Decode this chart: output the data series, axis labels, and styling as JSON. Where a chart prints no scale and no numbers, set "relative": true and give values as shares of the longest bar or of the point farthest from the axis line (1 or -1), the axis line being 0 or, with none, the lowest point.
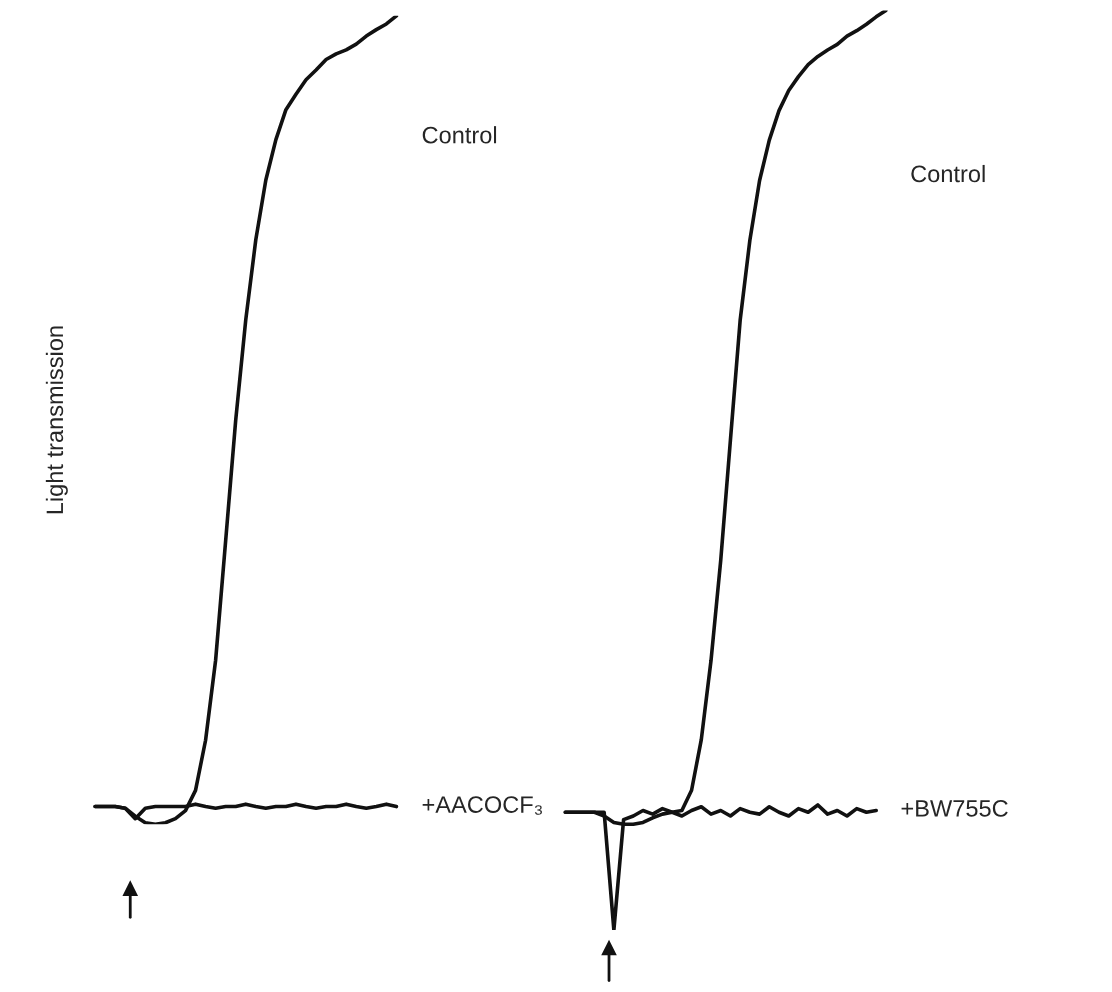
{
  "chart_data": [
    {
      "type": "line",
      "relative": true,
      "ylabel": "Light transmission",
      "categories": [
        null,
        null,
        null,
        null,
        null,
        null,
        null,
        null,
        null,
        null,
        null,
        null,
        null,
        null,
        null,
        null,
        null,
        null,
        null,
        null,
        null,
        null,
        null,
        null,
        null,
        null,
        null,
        null,
        null,
        null,
        null
      ],
      "series": [
        {
          "name": "Control",
          "color": "#111111",
          "values": [
            0.022,
            0.022,
            0.022,
            0.02,
            0.01,
            0.002,
            0,
            0.002,
            0.007,
            0.017,
            0.042,
            0.104,
            0.203,
            0.351,
            0.5,
            0.624,
            0.723,
            0.797,
            0.847,
            0.884,
            0.903,
            0.921,
            0.933,
            0.946,
            0.953,
            0.958,
            0.965,
            0.975,
            0.983,
            0.99,
            1
          ]
        },
        {
          "name": "+AACOCF₃",
          "color": "#111111",
          "values": [
            0.022,
            0.022,
            0.022,
            0.02,
            0.007,
            0.02,
            0.022,
            0.022,
            0.022,
            0.022,
            0.025,
            0.022,
            0.02,
            0.022,
            0.022,
            0.025,
            0.022,
            0.02,
            0.022,
            0.022,
            0.025,
            0.022,
            0.02,
            0.022,
            0.022,
            0.025,
            0.022,
            0.02,
            0.022,
            0.025,
            0.022
          ]
        }
      ]
    },
    {
      "type": "line",
      "relative": true,
      "categories": [
        null,
        null,
        null,
        null,
        null,
        null,
        null,
        null,
        null,
        null,
        null,
        null,
        null,
        null,
        null,
        null,
        null,
        null,
        null,
        null,
        null,
        null,
        null,
        null,
        null,
        null,
        null,
        null,
        null,
        null,
        null,
        null,
        null,
        null
      ],
      "series": [
        {
          "name": "Control",
          "color": "#111111",
          "values": [
            0.128,
            0.128,
            0.128,
            0.128,
            0.124,
            0.117,
            0.115,
            0.115,
            0.117,
            0.122,
            0.126,
            0.128,
            0.13,
            0.152,
            0.207,
            0.293,
            0.402,
            0.533,
            0.663,
            0.75,
            0.815,
            0.859,
            0.891,
            0.913,
            0.928,
            0.941,
            0.95,
            0.957,
            0.963,
            0.972,
            0.978,
            0.985,
            0.993,
            1
          ]
        },
        {
          "name": "+BW755C",
          "color": "#111111",
          "values": [
            0.128,
            0.128,
            0.128,
            0.128,
            0.128,
            0,
            0.12,
            0.124,
            0.13,
            0.126,
            0.132,
            0.128,
            0.124,
            0.13,
            0.134,
            0.126,
            0.13,
            0.124,
            0.132,
            0.128,
            0.126,
            0.134,
            0.128,
            0.124,
            0.132,
            0.128,
            0.136,
            0.126,
            0.13,
            0.124,
            0.132,
            0.128,
            0.13,
            null
          ]
        }
      ]
    }
  ]
}
